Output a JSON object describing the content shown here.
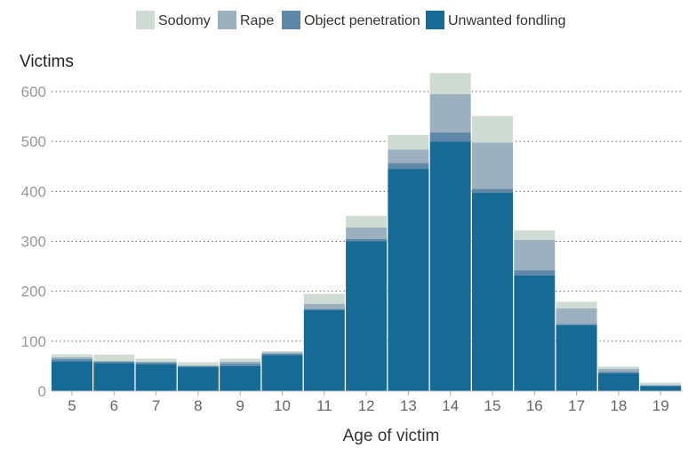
{
  "chart_data": {
    "type": "bar",
    "stacked": true,
    "categories": [
      "5",
      "6",
      "7",
      "8",
      "9",
      "10",
      "11",
      "12",
      "13",
      "14",
      "15",
      "16",
      "17",
      "18",
      "19"
    ],
    "series": [
      {
        "name": "Unwanted fondling",
        "color": "#156a96",
        "values": [
          60,
          56,
          54,
          48,
          50,
          72,
          162,
          300,
          445,
          500,
          397,
          232,
          132,
          36,
          10
        ]
      },
      {
        "name": "Object penetration",
        "color": "#5f88a8",
        "values": [
          4,
          3,
          3,
          2,
          5,
          3,
          3,
          5,
          12,
          18,
          8,
          10,
          3,
          3,
          1
        ]
      },
      {
        "name": "Rape",
        "color": "#9cb1bf",
        "values": [
          4,
          2,
          2,
          2,
          4,
          3,
          10,
          23,
          27,
          77,
          93,
          61,
          31,
          6,
          2
        ]
      },
      {
        "name": "Sodomy",
        "color": "#cfdcd4",
        "values": [
          6,
          12,
          6,
          6,
          6,
          2,
          20,
          23,
          29,
          42,
          53,
          19,
          13,
          4,
          4
        ]
      }
    ],
    "legend_order": [
      "Sodomy",
      "Rape",
      "Object penetration",
      "Unwanted fondling"
    ],
    "legend_position": "top",
    "ylabel": "Victims",
    "xlabel": "Age of victim",
    "yticks": [
      0,
      100,
      200,
      300,
      400,
      500,
      600
    ],
    "ylim": [
      0,
      650
    ],
    "grid": "horizontal dotted"
  }
}
